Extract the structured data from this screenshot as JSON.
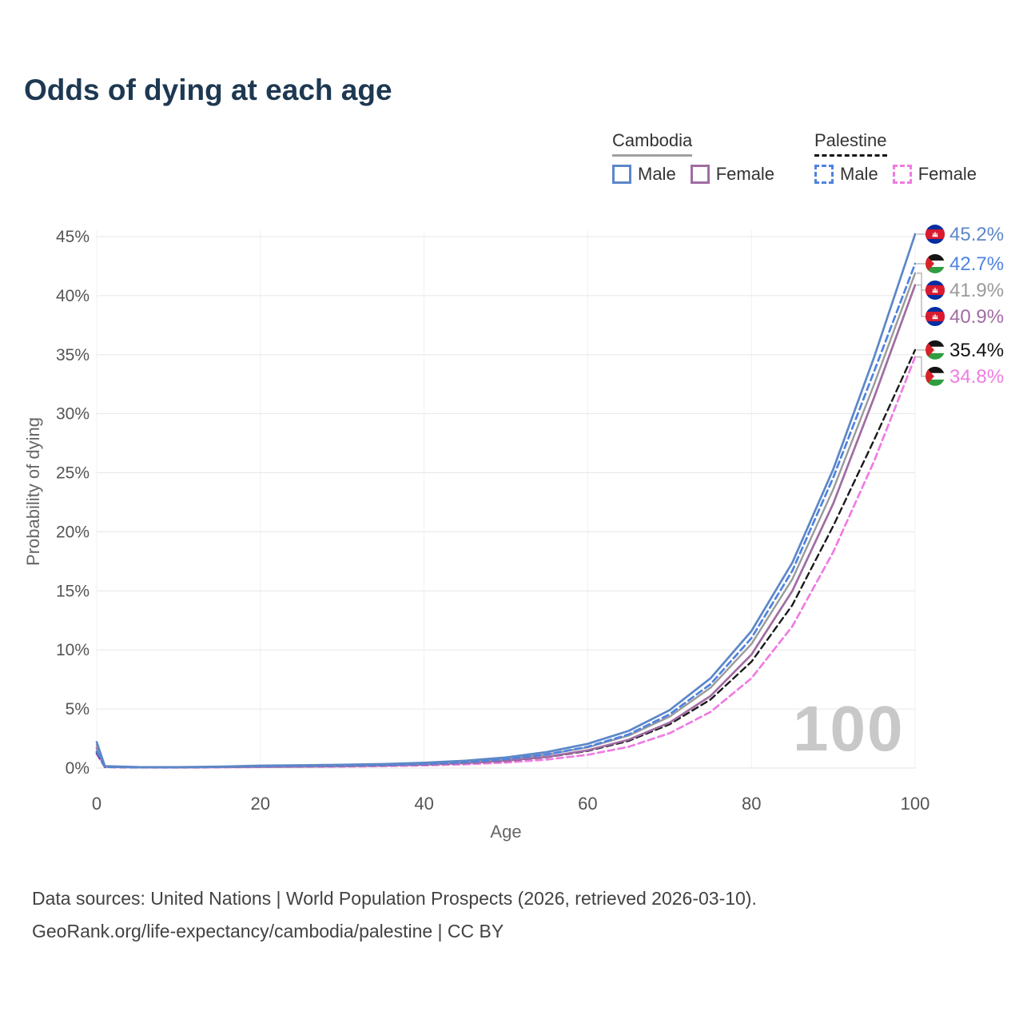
{
  "title": "Odds of dying at each age",
  "watermark": "100",
  "legend": {
    "groups": [
      {
        "label": "Cambodia",
        "line_style": "solid",
        "items": [
          {
            "label": "Male",
            "color": "#5c87c7"
          },
          {
            "label": "Female",
            "color": "#a06ca3"
          }
        ]
      },
      {
        "label": "Palestine",
        "line_style": "dashed",
        "items": [
          {
            "label": "Male",
            "color": "#4f83e0"
          },
          {
            "label": "Female",
            "color": "#ee7ce2"
          }
        ]
      }
    ]
  },
  "axes": {
    "x": {
      "label": "Age"
    },
    "y": {
      "label": "Probability of dying"
    }
  },
  "footer": {
    "line1": "Data sources: United Nations | World Population Prospects (2026, retrieved 2026-03-10).",
    "line2": "GeoRank.org/life-expectancy/cambodia/palestine | CC BY"
  },
  "chart_data": {
    "type": "line",
    "title": "Odds of dying at each age",
    "xlabel": "Age",
    "ylabel": "Probability of dying",
    "xlim": [
      0,
      100
    ],
    "ylim_percent": [
      0,
      45
    ],
    "x_ticks": [
      0,
      20,
      40,
      60,
      80,
      100
    ],
    "y_ticks": [
      "0%",
      "5%",
      "10%",
      "15%",
      "20%",
      "25%",
      "30%",
      "35%",
      "40%",
      "45%"
    ],
    "y_ticks_percent": [
      0,
      5,
      10,
      15,
      20,
      25,
      30,
      35,
      40,
      45
    ],
    "grid": true,
    "legend_position": "top-right",
    "ages": [
      0,
      1,
      5,
      10,
      15,
      20,
      25,
      30,
      35,
      40,
      45,
      50,
      55,
      60,
      65,
      70,
      75,
      80,
      85,
      90,
      95,
      100
    ],
    "series": [
      {
        "id": "cambodia-male",
        "name": "Cambodia Male",
        "country": "Cambodia",
        "sex": "Male",
        "color": "#5c87c7",
        "dashed": false,
        "flag": "kh",
        "end_label": "45.2%",
        "end_label_color": "#5c87c7",
        "end_value": 45.2,
        "values": [
          2.2,
          0.16,
          0.09,
          0.08,
          0.12,
          0.2,
          0.24,
          0.28,
          0.34,
          0.45,
          0.62,
          0.9,
          1.35,
          2.05,
          3.15,
          4.9,
          7.6,
          11.6,
          17.4,
          25.3,
          34.8,
          45.2
        ]
      },
      {
        "id": "palestine-male",
        "name": "Palestine Male",
        "country": "Palestine",
        "sex": "Male",
        "color": "#4f83e0",
        "dashed": true,
        "flag": "ps",
        "end_label": "42.7%",
        "end_label_color": "#4f83e0",
        "end_value": 42.7,
        "values": [
          1.4,
          0.1,
          0.06,
          0.06,
          0.1,
          0.15,
          0.18,
          0.21,
          0.26,
          0.35,
          0.5,
          0.75,
          1.15,
          1.8,
          2.85,
          4.55,
          7.1,
          11.0,
          16.7,
          24.6,
          33.6,
          42.7
        ]
      },
      {
        "id": "cambodia-total",
        "name": "Cambodia Both sexes",
        "country": "Cambodia",
        "sex": "Both",
        "color": "#9a9a9a",
        "dashed": false,
        "flag": "kh",
        "end_label": "41.9%",
        "end_label_color": "#9a9a9a",
        "end_value": 41.9,
        "values": [
          1.95,
          0.14,
          0.08,
          0.07,
          0.1,
          0.16,
          0.19,
          0.22,
          0.28,
          0.37,
          0.52,
          0.76,
          1.15,
          1.75,
          2.75,
          4.35,
          6.8,
          10.5,
          16.0,
          23.6,
          32.5,
          41.9
        ]
      },
      {
        "id": "cambodia-female",
        "name": "Cambodia Female",
        "country": "Cambodia",
        "sex": "Female",
        "color": "#a06ca3",
        "dashed": false,
        "flag": "kh",
        "end_label": "40.9%",
        "end_label_color": "#a06ca3",
        "end_value": 40.9,
        "values": [
          1.7,
          0.12,
          0.07,
          0.06,
          0.08,
          0.11,
          0.13,
          0.16,
          0.21,
          0.29,
          0.42,
          0.62,
          0.95,
          1.5,
          2.4,
          3.85,
          6.1,
          9.6,
          15.0,
          22.4,
          31.4,
          40.9
        ]
      },
      {
        "id": "palestine-total",
        "name": "Palestine Both sexes",
        "country": "Palestine",
        "sex": "Both",
        "color": "#1a1a1a",
        "dashed": true,
        "flag": "ps",
        "end_label": "35.4%",
        "end_label_color": "#111111",
        "end_value": 35.4,
        "values": [
          1.3,
          0.09,
          0.05,
          0.05,
          0.09,
          0.13,
          0.15,
          0.18,
          0.22,
          0.29,
          0.41,
          0.6,
          0.92,
          1.45,
          2.3,
          3.7,
          5.8,
          9.0,
          13.8,
          20.5,
          27.8,
          35.4
        ]
      },
      {
        "id": "palestine-female",
        "name": "Palestine Female",
        "country": "Palestine",
        "sex": "Female",
        "color": "#ee7ce2",
        "dashed": true,
        "flag": "ps",
        "end_label": "34.8%",
        "end_label_color": "#ee7ce2",
        "end_value": 34.8,
        "values": [
          1.2,
          0.08,
          0.05,
          0.04,
          0.06,
          0.09,
          0.11,
          0.13,
          0.17,
          0.23,
          0.32,
          0.47,
          0.72,
          1.12,
          1.8,
          2.95,
          4.75,
          7.6,
          12.0,
          18.3,
          26.0,
          34.8
        ]
      }
    ]
  }
}
